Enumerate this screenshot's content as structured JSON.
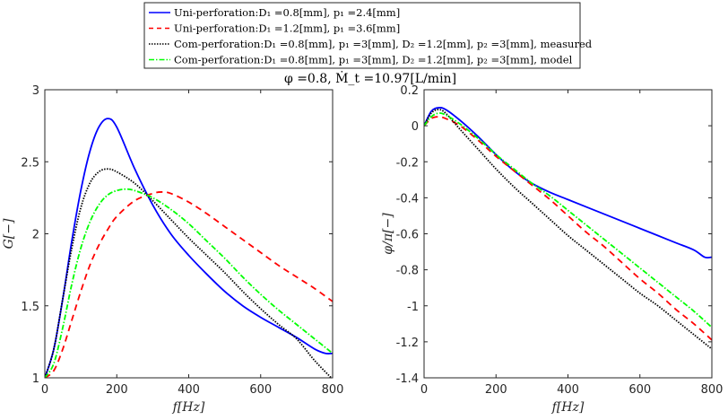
{
  "title": "φ =0.8, Ṁ_t =10.97[L/min]",
  "legend": {
    "placement": "top-center",
    "entries": [
      {
        "label": "Uni-perforation:D₁ =0.8[mm], p₁ =2.4[mm]",
        "color": "#0000ff",
        "style": "solid"
      },
      {
        "label": "Uni-perforation:D₁ =1.2[mm], p₁ =3.6[mm]",
        "color": "#ff0000",
        "style": "dashed"
      },
      {
        "label": "Com-perforation:D₁ =0.8[mm], p₁ =3[mm], D₂ =1.2[mm], p₂ =3[mm], measured",
        "color": "#000000",
        "style": "dotted"
      },
      {
        "label": "Com-perforation:D₁ =0.8[mm], p₁ =3[mm], D₂ =1.2[mm], p₂ =3[mm], model",
        "color": "#00ff00",
        "style": "dashdot"
      }
    ]
  },
  "chart_data": [
    {
      "type": "line",
      "title": "",
      "xlabel": "f[Hz]",
      "ylabel": "G[−]",
      "xlim": [
        0,
        800
      ],
      "ylim": [
        1,
        3
      ],
      "xticks": [
        "0",
        "200",
        "400",
        "600",
        "800"
      ],
      "xtick_values": [
        0,
        200,
        400,
        600,
        800
      ],
      "yticks": [
        "1",
        "1.5",
        "2",
        "2.5",
        "3"
      ],
      "ytick_values": [
        1,
        1.5,
        2,
        2.5,
        3
      ],
      "grid": false,
      "series": [
        {
          "name": "Uni-perforation D1=0.8 p1=2.4",
          "color": "#0000ff",
          "style": "solid",
          "x": [
            0,
            25,
            50,
            75,
            100,
            125,
            150,
            175,
            200,
            250,
            300,
            350,
            400,
            450,
            500,
            550,
            600,
            650,
            700,
            750,
            780,
            800
          ],
          "y": [
            1,
            1.2,
            1.55,
            1.95,
            2.3,
            2.57,
            2.74,
            2.8,
            2.74,
            2.45,
            2.2,
            2.0,
            1.85,
            1.72,
            1.6,
            1.5,
            1.42,
            1.35,
            1.28,
            1.2,
            1.17,
            1.17
          ]
        },
        {
          "name": "Uni-perforation D1=1.2 p1=3.6",
          "color": "#ff0000",
          "style": "dashed",
          "x": [
            0,
            25,
            50,
            75,
            100,
            125,
            150,
            175,
            200,
            250,
            300,
            325,
            350,
            400,
            450,
            500,
            550,
            600,
            650,
            700,
            750,
            800
          ],
          "y": [
            1,
            1.05,
            1.2,
            1.4,
            1.6,
            1.78,
            1.92,
            2.03,
            2.12,
            2.23,
            2.28,
            2.29,
            2.28,
            2.22,
            2.14,
            2.05,
            1.96,
            1.87,
            1.78,
            1.7,
            1.62,
            1.53
          ]
        },
        {
          "name": "Com-perforation measured",
          "color": "#000000",
          "style": "dotted",
          "x": [
            0,
            25,
            50,
            75,
            100,
            125,
            150,
            175,
            200,
            250,
            300,
            350,
            400,
            450,
            500,
            550,
            600,
            650,
            700,
            750,
            800
          ],
          "y": [
            1,
            1.2,
            1.55,
            1.9,
            2.18,
            2.35,
            2.43,
            2.45,
            2.43,
            2.35,
            2.23,
            2.1,
            1.97,
            1.85,
            1.73,
            1.6,
            1.48,
            1.37,
            1.27,
            1.12,
            0.99
          ]
        },
        {
          "name": "Com-perforation model",
          "color": "#00ff00",
          "style": "dashdot",
          "x": [
            0,
            25,
            50,
            75,
            100,
            125,
            150,
            175,
            200,
            225,
            250,
            300,
            350,
            400,
            450,
            500,
            550,
            600,
            650,
            700,
            750,
            800
          ],
          "y": [
            1,
            1.1,
            1.35,
            1.65,
            1.9,
            2.08,
            2.2,
            2.27,
            2.3,
            2.31,
            2.3,
            2.25,
            2.17,
            2.07,
            1.95,
            1.83,
            1.7,
            1.58,
            1.47,
            1.37,
            1.27,
            1.17
          ]
        }
      ]
    },
    {
      "type": "line",
      "title": "",
      "xlabel": "f[Hz]",
      "ylabel": "φ/π[−]",
      "xlim": [
        0,
        800
      ],
      "ylim": [
        -1.4,
        0.2
      ],
      "xticks": [
        "0",
        "200",
        "400",
        "600",
        "800"
      ],
      "xtick_values": [
        0,
        200,
        400,
        600,
        800
      ],
      "yticks": [
        "-1.4",
        "-1.2",
        "-1",
        "-0.8",
        "-0.6",
        "-0.4",
        "-0.2",
        "0",
        "0.2"
      ],
      "ytick_values": [
        -1.4,
        -1.2,
        -1,
        -0.8,
        -0.6,
        -0.4,
        -0.2,
        0,
        0.2
      ],
      "grid": false,
      "series": [
        {
          "name": "Uni-perforation D1=0.8 p1=2.4",
          "color": "#0000ff",
          "style": "solid",
          "x": [
            0,
            20,
            40,
            60,
            100,
            150,
            200,
            250,
            300,
            350,
            400,
            450,
            500,
            550,
            600,
            650,
            700,
            750,
            780,
            800
          ],
          "y": [
            0,
            0.08,
            0.1,
            0.09,
            0.03,
            -0.06,
            -0.16,
            -0.25,
            -0.32,
            -0.37,
            -0.41,
            -0.45,
            -0.49,
            -0.53,
            -0.57,
            -0.61,
            -0.65,
            -0.69,
            -0.73,
            -0.73
          ]
        },
        {
          "name": "Uni-perforation D1=1.2 p1=3.6",
          "color": "#ff0000",
          "style": "dashed",
          "x": [
            0,
            20,
            40,
            60,
            100,
            150,
            200,
            250,
            300,
            350,
            400,
            450,
            500,
            550,
            600,
            650,
            700,
            750,
            800
          ],
          "y": [
            0,
            0.04,
            0.05,
            0.04,
            0.0,
            -0.08,
            -0.17,
            -0.25,
            -0.33,
            -0.41,
            -0.5,
            -0.59,
            -0.67,
            -0.76,
            -0.85,
            -0.93,
            -1.02,
            -1.1,
            -1.19
          ]
        },
        {
          "name": "Com-perforation measured",
          "color": "#000000",
          "style": "dotted",
          "x": [
            0,
            20,
            40,
            60,
            100,
            150,
            200,
            250,
            300,
            350,
            400,
            450,
            500,
            550,
            600,
            650,
            700,
            750,
            800
          ],
          "y": [
            0,
            0.07,
            0.09,
            0.07,
            -0.02,
            -0.13,
            -0.24,
            -0.34,
            -0.43,
            -0.52,
            -0.61,
            -0.69,
            -0.77,
            -0.85,
            -0.93,
            -1.0,
            -1.08,
            -1.16,
            -1.24
          ]
        },
        {
          "name": "Com-perforation model",
          "color": "#00ff00",
          "style": "dashdot",
          "x": [
            0,
            20,
            40,
            60,
            100,
            150,
            200,
            250,
            300,
            350,
            400,
            450,
            500,
            550,
            600,
            650,
            700,
            750,
            800
          ],
          "y": [
            0,
            0.05,
            0.07,
            0.06,
            0.01,
            -0.07,
            -0.16,
            -0.24,
            -0.32,
            -0.39,
            -0.47,
            -0.55,
            -0.63,
            -0.71,
            -0.79,
            -0.87,
            -0.95,
            -1.03,
            -1.12
          ]
        }
      ]
    }
  ]
}
